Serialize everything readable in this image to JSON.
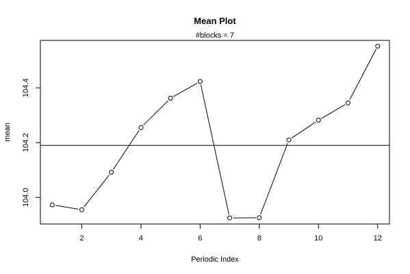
{
  "chart_data": {
    "type": "line",
    "title": "Mean Plot",
    "subtitle": "#blocks =  7",
    "xlabel": "Periodic Index",
    "ylabel": "mean",
    "x": [
      1,
      2,
      3,
      4,
      5,
      6,
      7,
      8,
      9,
      10,
      11,
      12
    ],
    "values": [
      103.973,
      103.955,
      104.092,
      104.255,
      104.362,
      104.423,
      103.925,
      103.926,
      104.21,
      104.282,
      104.345,
      104.552
    ],
    "hline": 104.19,
    "xlim": [
      0.6,
      12.4
    ],
    "ylim": [
      103.903,
      104.573
    ],
    "xticks": [
      2,
      4,
      6,
      8,
      10,
      12
    ],
    "yticks": [
      104.0,
      104.2,
      104.4
    ],
    "ytick_labels": [
      "104.0",
      "104.2",
      "104.4"
    ],
    "grid": false,
    "marker": "open-circle",
    "line_color": "#000000"
  }
}
